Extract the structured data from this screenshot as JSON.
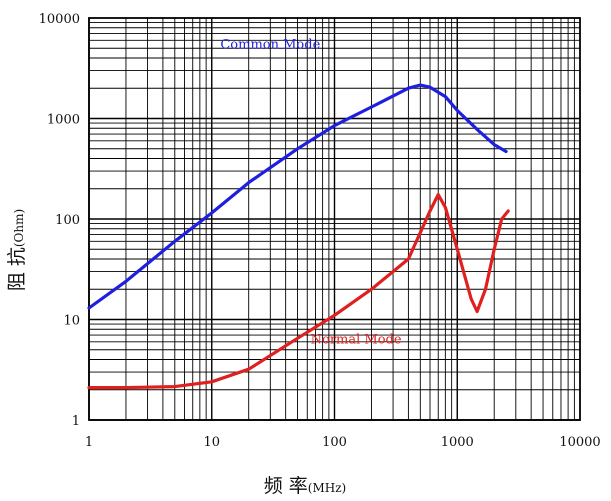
{
  "chart_data": {
    "type": "line",
    "title": "",
    "xlabel": "频 率",
    "xlabel_unit": "(MHz)",
    "ylabel": "阻 抗",
    "ylabel_unit": "(Ohm)",
    "x_scale": "log",
    "y_scale": "log",
    "xlim": [
      1,
      10000
    ],
    "ylim": [
      1,
      10000
    ],
    "grid": true,
    "x_ticks": [
      "1",
      "10",
      "100",
      "1000",
      "10000"
    ],
    "y_ticks": [
      "1",
      "10",
      "100",
      "1000",
      "10000"
    ],
    "series": [
      {
        "name": "Common Mode",
        "color": "#1f1fe0",
        "points": [
          [
            1,
            13
          ],
          [
            2,
            24
          ],
          [
            5,
            60
          ],
          [
            10,
            115
          ],
          [
            20,
            230
          ],
          [
            50,
            500
          ],
          [
            100,
            850
          ],
          [
            200,
            1300
          ],
          [
            400,
            2000
          ],
          [
            500,
            2150
          ],
          [
            600,
            2050
          ],
          [
            800,
            1650
          ],
          [
            1000,
            1200
          ],
          [
            1500,
            750
          ],
          [
            2000,
            550
          ],
          [
            2500,
            470
          ]
        ]
      },
      {
        "name": "Normal Mode",
        "color": "#e0201f",
        "points": [
          [
            1,
            2.1
          ],
          [
            2,
            2.1
          ],
          [
            5,
            2.15
          ],
          [
            10,
            2.4
          ],
          [
            20,
            3.2
          ],
          [
            50,
            6.5
          ],
          [
            100,
            11
          ],
          [
            200,
            20
          ],
          [
            400,
            40
          ],
          [
            600,
            120
          ],
          [
            700,
            175
          ],
          [
            800,
            130
          ],
          [
            1000,
            50
          ],
          [
            1300,
            16
          ],
          [
            1450,
            12
          ],
          [
            1700,
            20
          ],
          [
            2000,
            50
          ],
          [
            2300,
            100
          ],
          [
            2600,
            120
          ]
        ]
      }
    ]
  }
}
